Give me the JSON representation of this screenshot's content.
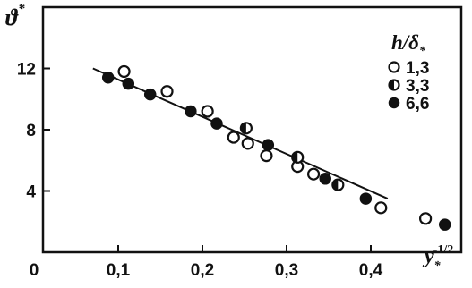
{
  "chart_data": {
    "type": "scatter",
    "title": "",
    "ylabel": {
      "symbol": "ϑ",
      "superscript": "*"
    },
    "xlabel": {
      "base": "y",
      "subscript": "*",
      "superscript": "-1/2"
    },
    "xlim": [
      0,
      0.5
    ],
    "ylim": [
      0,
      16
    ],
    "x_ticks": [
      {
        "value": 0,
        "label": "0"
      },
      {
        "value": 0.1,
        "label": "0,1"
      },
      {
        "value": 0.2,
        "label": "0,2"
      },
      {
        "value": 0.3,
        "label": "0,3"
      },
      {
        "value": 0.4,
        "label": "0,4"
      }
    ],
    "y_ticks": [
      {
        "value": 4,
        "label": "4"
      },
      {
        "value": 8,
        "label": "8"
      },
      {
        "value": 12,
        "label": "12"
      }
    ],
    "grid": false,
    "legend": {
      "placement": "top-right",
      "title": {
        "main": "h/δ",
        "subscript": "*"
      }
    },
    "series": [
      {
        "name": "1,3",
        "marker": "open-circle",
        "points": [
          {
            "x": 0.107,
            "y": 11.8
          },
          {
            "x": 0.158,
            "y": 10.5
          },
          {
            "x": 0.206,
            "y": 9.2
          },
          {
            "x": 0.237,
            "y": 7.5
          },
          {
            "x": 0.254,
            "y": 7.1
          },
          {
            "x": 0.276,
            "y": 6.3
          },
          {
            "x": 0.313,
            "y": 5.6
          },
          {
            "x": 0.332,
            "y": 5.1
          },
          {
            "x": 0.412,
            "y": 2.9
          },
          {
            "x": 0.465,
            "y": 2.2
          }
        ]
      },
      {
        "name": "3,3",
        "marker": "half-filled-circle",
        "points": [
          {
            "x": 0.252,
            "y": 8.1
          },
          {
            "x": 0.313,
            "y": 6.2
          },
          {
            "x": 0.361,
            "y": 4.4
          }
        ]
      },
      {
        "name": "6,6",
        "marker": "filled-circle",
        "points": [
          {
            "x": 0.088,
            "y": 11.4
          },
          {
            "x": 0.112,
            "y": 11.0
          },
          {
            "x": 0.138,
            "y": 10.3
          },
          {
            "x": 0.186,
            "y": 9.2
          },
          {
            "x": 0.217,
            "y": 8.4
          },
          {
            "x": 0.278,
            "y": 7.0
          },
          {
            "x": 0.346,
            "y": 4.8
          },
          {
            "x": 0.394,
            "y": 3.5
          },
          {
            "x": 0.488,
            "y": 1.8
          }
        ]
      }
    ],
    "fit_line": {
      "points": [
        {
          "x": 0.07,
          "y": 12.0
        },
        {
          "x": 0.42,
          "y": 3.5
        }
      ]
    }
  }
}
